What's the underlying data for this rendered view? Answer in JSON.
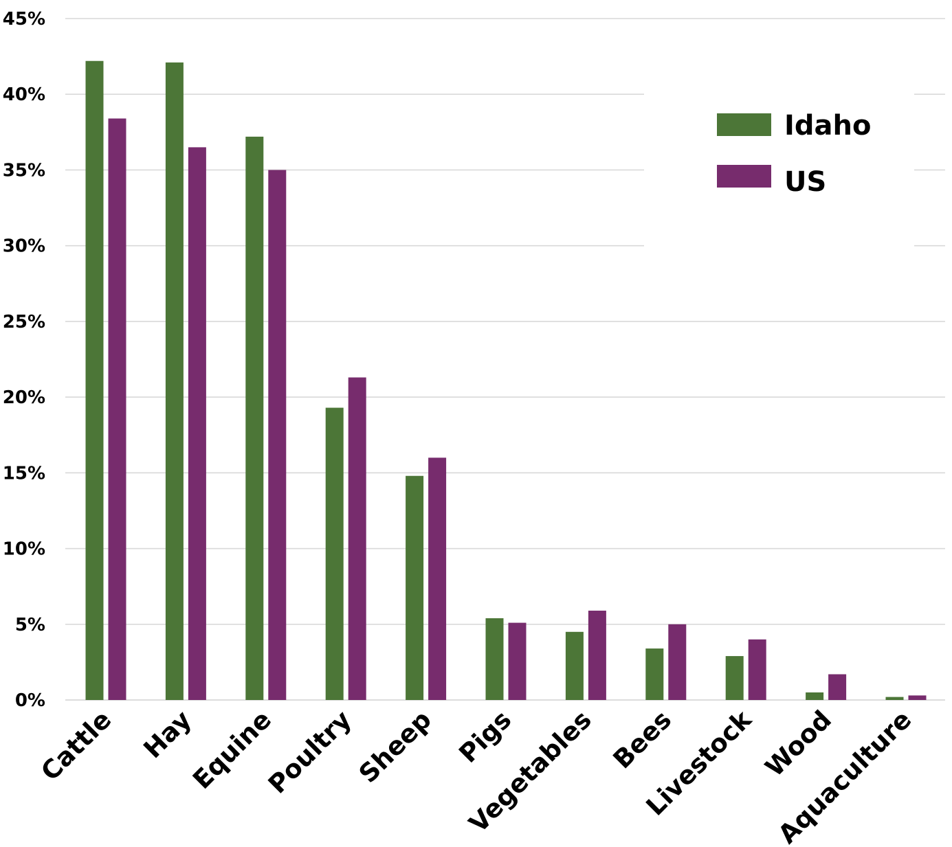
{
  "chart_data": {
    "type": "bar",
    "title": "",
    "xlabel": "",
    "ylabel": "",
    "categories": [
      "Cattle",
      "Hay",
      "Equine",
      "Poultry",
      "Sheep",
      "Pigs",
      "Vegetables",
      "Bees",
      "Livestock",
      "Wood",
      "Aquaculture"
    ],
    "series": [
      {
        "name": "Idaho",
        "color": "#4c7637",
        "values": [
          42.2,
          42.1,
          37.2,
          19.3,
          14.8,
          5.4,
          4.5,
          3.4,
          2.9,
          0.5,
          0.2
        ]
      },
      {
        "name": "US",
        "color": "#772c6d",
        "values": [
          38.4,
          36.5,
          35.0,
          21.3,
          16.0,
          5.1,
          5.9,
          5.0,
          4.0,
          1.7,
          0.3
        ]
      }
    ],
    "ylim": [
      0,
      45
    ],
    "yticks": [
      0,
      5,
      10,
      15,
      20,
      25,
      30,
      35,
      40,
      45
    ],
    "ytick_labels": [
      "0%",
      "5%",
      "10%",
      "15%",
      "20%",
      "25%",
      "30%",
      "35%",
      "40%",
      "45%"
    ],
    "grid": true,
    "legend_position": "top-right"
  }
}
